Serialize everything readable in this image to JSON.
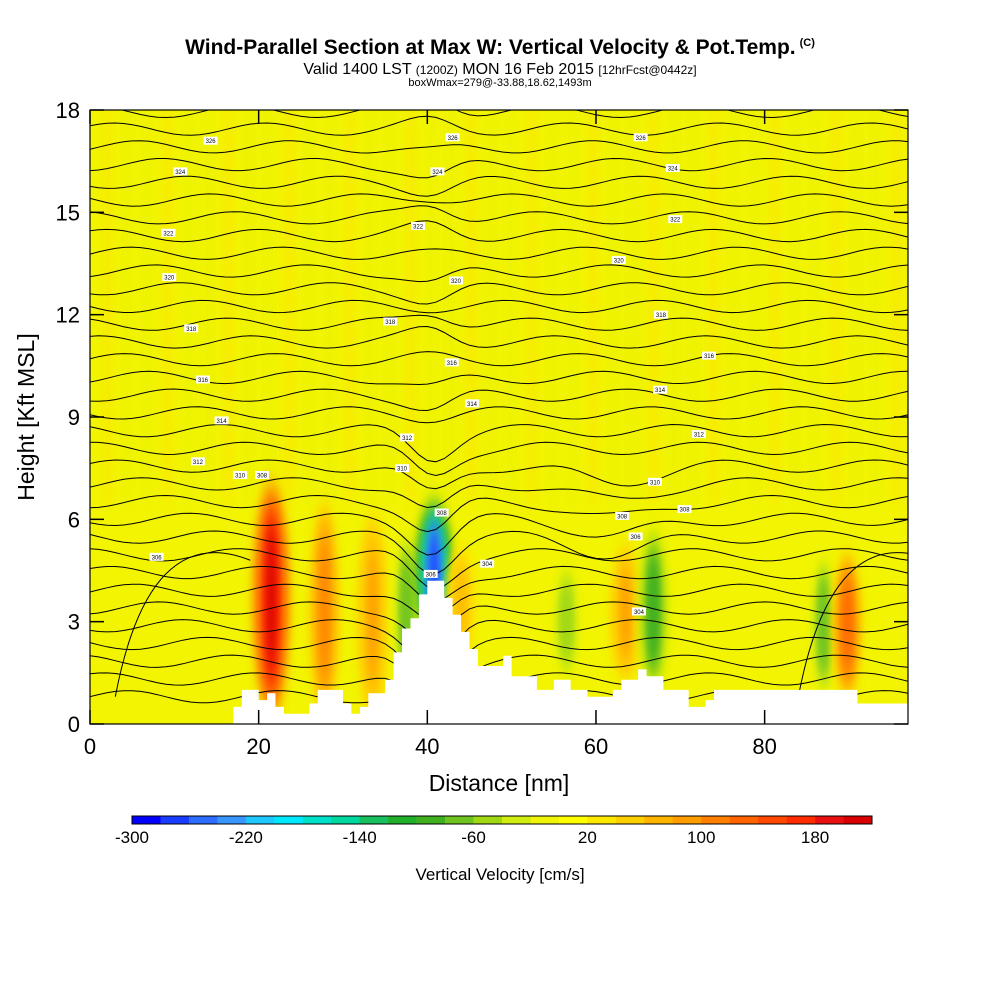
{
  "header": {
    "title": "Wind-Parallel Section at Max W: Vertical Velocity & Pot.Temp.",
    "copyright": "(C)",
    "valid_prefix": "Valid 1400 LST",
    "valid_utc": "(1200Z)",
    "valid_date": "MON 16 Feb 2015",
    "forecast_info": "[12hrFcst@0442z]",
    "box_info": "boxWmax=279@-33.88,18.62,1493m"
  },
  "chart_data": {
    "type": "heatmap",
    "title": "Wind-Parallel Section at Max W: Vertical Velocity & Pot.Temp.",
    "xlabel": "Distance [nm]",
    "ylabel": "Height [Kft MSL]",
    "xlim": [
      0,
      97
    ],
    "ylim": [
      0,
      18
    ],
    "xticks": [
      "0",
      "20",
      "40",
      "60",
      "80"
    ],
    "yticks": [
      "0",
      "3",
      "6",
      "9",
      "12",
      "15",
      "18"
    ],
    "colorbar": {
      "label": "Vertical Velocity [cm/s]",
      "range": [
        -300,
        220
      ],
      "tick_labels": [
        "-300",
        "-220",
        "-140",
        "-60",
        "20",
        "100",
        "180"
      ],
      "colors": [
        "#0000ff",
        "#1a3cff",
        "#2e6bff",
        "#3a96ff",
        "#1ec8ff",
        "#00e8ff",
        "#00e0c8",
        "#00d8a0",
        "#18c060",
        "#22b02c",
        "#40b020",
        "#70c420",
        "#a0d814",
        "#d0ec10",
        "#f0f408",
        "#ffff00",
        "#ffe800",
        "#ffd000",
        "#ffb400",
        "#ff9c00",
        "#ff8000",
        "#ff6400",
        "#ff4800",
        "#ff2c00",
        "#e81010",
        "#d80000"
      ]
    },
    "vertical_velocity_features": [
      {
        "x": 21.5,
        "y_bottom": 0.5,
        "y_top": 6.8,
        "peak_cms": 200,
        "kind": "updraft"
      },
      {
        "x": 27.8,
        "y_bottom": 0.5,
        "y_top": 6.2,
        "peak_cms": 100,
        "kind": "updraft"
      },
      {
        "x": 33.5,
        "y_bottom": 0.5,
        "y_top": 5.8,
        "peak_cms": 80,
        "kind": "updraft"
      },
      {
        "x": 37.5,
        "y_bottom": 1.0,
        "y_top": 5.5,
        "peak_cms": -80,
        "kind": "downdraft"
      },
      {
        "x": 40.8,
        "y_bottom": 2.5,
        "y_top": 6.3,
        "peak_cms": -280,
        "kind": "downdraft"
      },
      {
        "x": 44.0,
        "y_bottom": 2.0,
        "y_top": 5.0,
        "peak_cms": 60,
        "kind": "updraft"
      },
      {
        "x": 56.5,
        "y_bottom": 1.5,
        "y_top": 4.5,
        "peak_cms": -60,
        "kind": "downdraft"
      },
      {
        "x": 63.5,
        "y_bottom": 1.5,
        "y_top": 5.0,
        "peak_cms": 80,
        "kind": "updraft"
      },
      {
        "x": 66.8,
        "y_bottom": 1.2,
        "y_top": 5.5,
        "peak_cms": -100,
        "kind": "downdraft"
      },
      {
        "x": 87.0,
        "y_bottom": 1.0,
        "y_top": 4.8,
        "peak_cms": -80,
        "kind": "downdraft"
      },
      {
        "x": 89.8,
        "y_bottom": 1.0,
        "y_top": 4.8,
        "peak_cms": 120,
        "kind": "updraft"
      }
    ],
    "terrain_nm_kft": [
      [
        0,
        0
      ],
      [
        17,
        0
      ],
      [
        17,
        0.5
      ],
      [
        18,
        0.5
      ],
      [
        18,
        1
      ],
      [
        20,
        1
      ],
      [
        20,
        0.7
      ],
      [
        21,
        0.7
      ],
      [
        21,
        0.9
      ],
      [
        22,
        0.9
      ],
      [
        22,
        0.5
      ],
      [
        23,
        0.5
      ],
      [
        23,
        0.3
      ],
      [
        26,
        0.3
      ],
      [
        26,
        0.6
      ],
      [
        27,
        0.6
      ],
      [
        27,
        1
      ],
      [
        30,
        1
      ],
      [
        30,
        0.6
      ],
      [
        31,
        0.6
      ],
      [
        31,
        0.3
      ],
      [
        32,
        0.3
      ],
      [
        32,
        0.5
      ],
      [
        33,
        0.5
      ],
      [
        33,
        0.9
      ],
      [
        35,
        0.9
      ],
      [
        35,
        1.3
      ],
      [
        36,
        1.3
      ],
      [
        36,
        2.1
      ],
      [
        37,
        2.1
      ],
      [
        37,
        2.8
      ],
      [
        38,
        2.8
      ],
      [
        38,
        3.1
      ],
      [
        39,
        3.1
      ],
      [
        39,
        3.8
      ],
      [
        40,
        3.8
      ],
      [
        40,
        4.2
      ],
      [
        42,
        4.2
      ],
      [
        42,
        3.7
      ],
      [
        43,
        3.7
      ],
      [
        43,
        3.2
      ],
      [
        44,
        3.2
      ],
      [
        44,
        2.7
      ],
      [
        45,
        2.7
      ],
      [
        45,
        2.2
      ],
      [
        46,
        2.2
      ],
      [
        46,
        1.7
      ],
      [
        49,
        1.7
      ],
      [
        49,
        2.0
      ],
      [
        50,
        2.0
      ],
      [
        50,
        1.4
      ],
      [
        53,
        1.4
      ],
      [
        53,
        1.0
      ],
      [
        55,
        1.0
      ],
      [
        55,
        1.3
      ],
      [
        57,
        1.3
      ],
      [
        57,
        1.0
      ],
      [
        59,
        1.0
      ],
      [
        59,
        0.8
      ],
      [
        62,
        0.8
      ],
      [
        62,
        1.0
      ],
      [
        63,
        1.0
      ],
      [
        63,
        1.3
      ],
      [
        65,
        1.3
      ],
      [
        65,
        1.6
      ],
      [
        66,
        1.6
      ],
      [
        66,
        1.4
      ],
      [
        68,
        1.4
      ],
      [
        68,
        1.0
      ],
      [
        71,
        1.0
      ],
      [
        71,
        0.5
      ],
      [
        73,
        0.5
      ],
      [
        73,
        0.7
      ],
      [
        74,
        0.7
      ],
      [
        74,
        1.0
      ],
      [
        91,
        1.0
      ],
      [
        91,
        0.6
      ],
      [
        97,
        0.6
      ],
      [
        97,
        0
      ]
    ],
    "theta_contour_labels": [
      {
        "x": 14.3,
        "y": 17.1,
        "text": "326"
      },
      {
        "x": 10.7,
        "y": 16.2,
        "text": "324"
      },
      {
        "x": 9.3,
        "y": 14.4,
        "text": "322"
      },
      {
        "x": 9.4,
        "y": 13.1,
        "text": "320"
      },
      {
        "x": 12.0,
        "y": 11.6,
        "text": "318"
      },
      {
        "x": 13.4,
        "y": 10.1,
        "text": "316"
      },
      {
        "x": 15.6,
        "y": 8.9,
        "text": "314"
      },
      {
        "x": 12.8,
        "y": 7.7,
        "text": "312"
      },
      {
        "x": 17.8,
        "y": 7.3,
        "text": "310"
      },
      {
        "x": 20.4,
        "y": 7.3,
        "text": "308"
      },
      {
        "x": 7.9,
        "y": 4.9,
        "text": "306"
      },
      {
        "x": 43.0,
        "y": 17.2,
        "text": "326"
      },
      {
        "x": 41.2,
        "y": 16.2,
        "text": "324"
      },
      {
        "x": 38.9,
        "y": 14.6,
        "text": "322"
      },
      {
        "x": 43.4,
        "y": 13.0,
        "text": "320"
      },
      {
        "x": 35.6,
        "y": 11.8,
        "text": "318"
      },
      {
        "x": 42.9,
        "y": 10.6,
        "text": "316"
      },
      {
        "x": 45.3,
        "y": 9.4,
        "text": "314"
      },
      {
        "x": 37.6,
        "y": 8.4,
        "text": "312"
      },
      {
        "x": 37.0,
        "y": 7.5,
        "text": "310"
      },
      {
        "x": 41.7,
        "y": 6.2,
        "text": "308"
      },
      {
        "x": 40.4,
        "y": 4.4,
        "text": "306"
      },
      {
        "x": 47.1,
        "y": 4.7,
        "text": "304"
      },
      {
        "x": 65.3,
        "y": 17.2,
        "text": "326"
      },
      {
        "x": 69.1,
        "y": 16.3,
        "text": "324"
      },
      {
        "x": 69.4,
        "y": 14.8,
        "text": "322"
      },
      {
        "x": 62.7,
        "y": 13.6,
        "text": "320"
      },
      {
        "x": 67.7,
        "y": 12.0,
        "text": "318"
      },
      {
        "x": 73.4,
        "y": 10.8,
        "text": "316"
      },
      {
        "x": 67.6,
        "y": 9.8,
        "text": "314"
      },
      {
        "x": 72.2,
        "y": 8.5,
        "text": "312"
      },
      {
        "x": 67.0,
        "y": 7.1,
        "text": "310"
      },
      {
        "x": 63.1,
        "y": 6.1,
        "text": "308"
      },
      {
        "x": 70.5,
        "y": 6.3,
        "text": "308"
      },
      {
        "x": 64.7,
        "y": 5.5,
        "text": "306"
      },
      {
        "x": 65.1,
        "y": 3.3,
        "text": "304"
      }
    ]
  }
}
